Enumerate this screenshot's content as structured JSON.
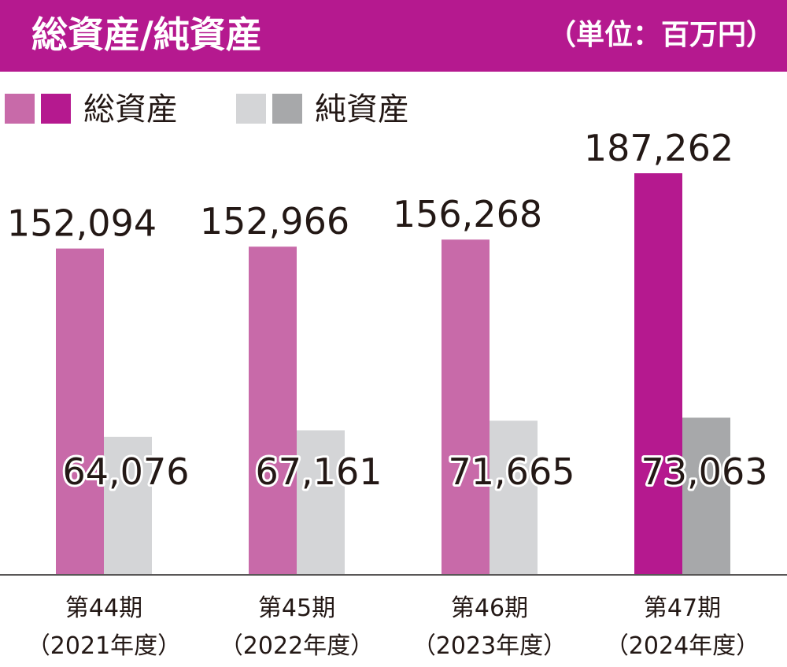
{
  "header": {
    "title": "総資産/純資産",
    "unit": "（単位：百万円）"
  },
  "legend": [
    {
      "label": "総資産",
      "colors": [
        "#c86aa9",
        "#b5198f"
      ]
    },
    {
      "label": "純資産",
      "colors": [
        "#d4d5d7",
        "#a7a8aa"
      ]
    }
  ],
  "chart_data": {
    "type": "bar",
    "categories": [
      {
        "period": "第44期",
        "year": "（2021年度）"
      },
      {
        "period": "第45期",
        "year": "（2022年度）"
      },
      {
        "period": "第46期",
        "year": "（2023年度）"
      },
      {
        "period": "第47期",
        "year": "（2024年度）"
      }
    ],
    "series": [
      {
        "name": "総資産",
        "values": [
          152094,
          152966,
          156268,
          187262
        ],
        "labels": [
          "152,094",
          "152,966",
          "156,268",
          "187,262"
        ],
        "colors": [
          "#c86aa9",
          "#c86aa9",
          "#c86aa9",
          "#b5198f"
        ]
      },
      {
        "name": "純資産",
        "values": [
          64076,
          67161,
          71665,
          73063
        ],
        "labels": [
          "64,076",
          "67,161",
          "71,665",
          "73,063"
        ],
        "colors": [
          "#d4d5d7",
          "#d4d5d7",
          "#d4d5d7",
          "#a7a8aa"
        ]
      }
    ],
    "ylim": [
      0,
      187262
    ],
    "grid": false,
    "legend_position": "top-left"
  }
}
